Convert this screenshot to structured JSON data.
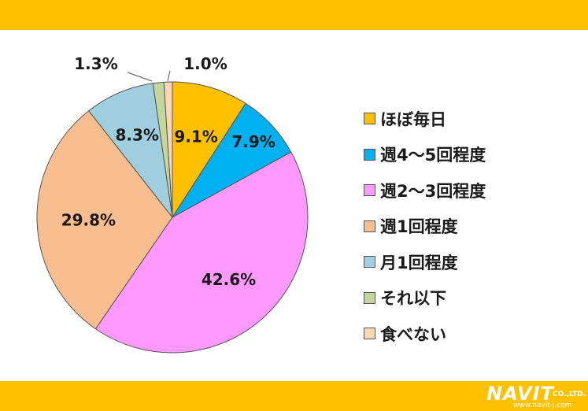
{
  "chart_data": {
    "type": "pie",
    "title": "",
    "start_angle_deg": 0,
    "direction": "clockwise",
    "slices": [
      {
        "label": "ほぼ毎日",
        "value": 9.1,
        "display": "9.1%",
        "color": "#FFC000"
      },
      {
        "label": "週4～5回程度",
        "value": 7.9,
        "display": "7.9%",
        "color": "#00B0F0"
      },
      {
        "label": "週2～3回程度",
        "value": 42.6,
        "display": "42.6%",
        "color": "#FF99FF"
      },
      {
        "label": "週1回程度",
        "value": 29.8,
        "display": "29.8%",
        "color": "#F9BE8F"
      },
      {
        "label": "月1回程度",
        "value": 8.3,
        "display": "8.3%",
        "color": "#9FCFDF"
      },
      {
        "label": "それ以下",
        "value": 1.3,
        "display": "1.3%",
        "color": "#C3D69B"
      },
      {
        "label": "食べない",
        "value": 1.0,
        "display": "1.0%",
        "color": "#FCD5B5"
      }
    ],
    "legend_position": "right"
  },
  "colors": {
    "header_bar": "#FFC000",
    "footer_bar": "#FFC000"
  },
  "logo": {
    "main": "NAVIT",
    "company": "CO.,LTD.",
    "url": "www.navit-j.com"
  }
}
